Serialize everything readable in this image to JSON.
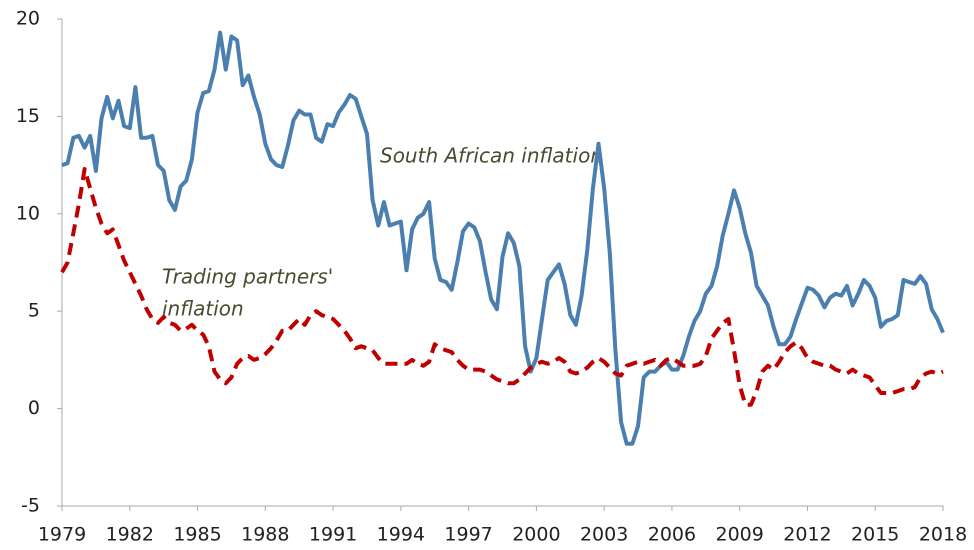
{
  "chart_data": {
    "type": "line",
    "xlim": [
      1979,
      2018
    ],
    "xticks": [
      1979,
      1982,
      1985,
      1988,
      1991,
      1994,
      1997,
      2000,
      2003,
      2006,
      2009,
      2012,
      2015,
      2018
    ],
    "ylim": [
      -5,
      20
    ],
    "yticks": [
      -5,
      0,
      5,
      10,
      15,
      20
    ],
    "grid": false,
    "annotations": [
      "South African inflation",
      "Trading partners'",
      "inflation"
    ],
    "x": [
      1979,
      1979.25,
      1979.5,
      1979.75,
      1980,
      1980.25,
      1980.5,
      1980.75,
      1981,
      1981.25,
      1981.5,
      1981.75,
      1982,
      1982.25,
      1982.5,
      1982.75,
      1983,
      1983.25,
      1983.5,
      1983.75,
      1984,
      1984.25,
      1984.5,
      1984.75,
      1985,
      1985.25,
      1985.5,
      1985.75,
      1986,
      1986.25,
      1986.5,
      1986.75,
      1987,
      1987.25,
      1987.5,
      1987.75,
      1988,
      1988.25,
      1988.5,
      1988.75,
      1989,
      1989.25,
      1989.5,
      1989.75,
      1990,
      1990.25,
      1990.5,
      1990.75,
      1991,
      1991.25,
      1991.5,
      1991.75,
      1992,
      1992.25,
      1992.5,
      1992.75,
      1993,
      1993.25,
      1993.5,
      1993.75,
      1994,
      1994.25,
      1994.5,
      1994.75,
      1995,
      1995.25,
      1995.5,
      1995.75,
      1996,
      1996.25,
      1996.5,
      1996.75,
      1997,
      1997.25,
      1997.5,
      1997.75,
      1998,
      1998.25,
      1998.5,
      1998.75,
      1999,
      1999.25,
      1999.5,
      1999.75,
      2000,
      2000.25,
      2000.5,
      2000.75,
      2001,
      2001.25,
      2001.5,
      2001.75,
      2002,
      2002.25,
      2002.5,
      2002.75,
      2003,
      2003.25,
      2003.5,
      2003.75,
      2004,
      2004.25,
      2004.5,
      2004.75,
      2005,
      2005.25,
      2005.5,
      2005.75,
      2006,
      2006.25,
      2006.5,
      2006.75,
      2007,
      2007.25,
      2007.5,
      2007.75,
      2008,
      2008.25,
      2008.5,
      2008.75,
      2009,
      2009.25,
      2009.5,
      2009.75,
      2010,
      2010.25,
      2010.5,
      2010.75,
      2011,
      2011.25,
      2011.5,
      2011.75,
      2012,
      2012.25,
      2012.5,
      2012.75,
      2013,
      2013.25,
      2013.5,
      2013.75,
      2014,
      2014.25,
      2014.5,
      2014.75,
      2015,
      2015.25,
      2015.5,
      2015.75,
      2016,
      2016.25,
      2016.5,
      2016.75,
      2017,
      2017.25,
      2017.5,
      2017.75,
      2018
    ],
    "series": [
      {
        "color": "#4a7fb0",
        "dash": false,
        "values": [
          12.5,
          12.6,
          13.9,
          14.0,
          13.4,
          14.0,
          12.2,
          14.9,
          16.0,
          14.9,
          15.8,
          14.5,
          14.4,
          16.5,
          13.9,
          13.9,
          14.0,
          12.5,
          12.2,
          10.7,
          10.2,
          11.4,
          11.7,
          12.8,
          15.2,
          16.2,
          16.3,
          17.4,
          19.3,
          17.4,
          19.1,
          18.9,
          16.6,
          17.1,
          16.0,
          15.1,
          13.6,
          12.8,
          12.5,
          12.4,
          13.5,
          14.8,
          15.3,
          15.1,
          15.1,
          13.9,
          13.7,
          14.6,
          14.5,
          15.2,
          15.6,
          16.1,
          15.9,
          15.0,
          14.1,
          10.7,
          9.4,
          10.6,
          9.4,
          9.5,
          9.6,
          7.1,
          9.2,
          9.8,
          10.0,
          10.6,
          7.7,
          6.6,
          6.5,
          6.1,
          7.5,
          9.1,
          9.5,
          9.3,
          8.6,
          7.0,
          5.6,
          5.1,
          7.8,
          9.0,
          8.5,
          7.3,
          3.2,
          1.9,
          2.6,
          4.6,
          6.6,
          7.0,
          7.4,
          6.4,
          4.8,
          4.3,
          5.8,
          8.1,
          11.3,
          13.6,
          11.3,
          8.0,
          3.0,
          -0.7,
          -1.8,
          -1.8,
          -0.9,
          1.6,
          1.9,
          1.9,
          2.2,
          2.4,
          2.0,
          2.0,
          2.7,
          3.7,
          4.5,
          5.0,
          5.9,
          6.3,
          7.3,
          8.9,
          10.0,
          11.2,
          10.3,
          9.0,
          8.0,
          6.3,
          5.8,
          5.3,
          4.2,
          3.3,
          3.3,
          3.7,
          4.6,
          5.4,
          6.2,
          6.1,
          5.8,
          5.2,
          5.7,
          5.9,
          5.8,
          6.3,
          5.3,
          5.9,
          6.6,
          6.3,
          5.7,
          4.2,
          4.5,
          4.6,
          4.8,
          6.6,
          6.5,
          6.4,
          6.8,
          6.4,
          5.1,
          4.6,
          3.9
        ]
      },
      {
        "color": "#c00000",
        "dash": true,
        "values": [
          7.0,
          7.5,
          9.0,
          10.5,
          12.3,
          11.3,
          10.3,
          9.5,
          9.0,
          9.2,
          8.4,
          7.6,
          7.0,
          6.4,
          5.8,
          5.1,
          4.6,
          4.4,
          4.7,
          4.4,
          4.3,
          4.0,
          4.1,
          4.3,
          4.0,
          3.8,
          3.2,
          1.9,
          1.5,
          1.3,
          1.6,
          2.3,
          2.6,
          2.7,
          2.5,
          2.6,
          2.8,
          3.1,
          3.5,
          4.0,
          4.0,
          4.3,
          4.6,
          4.3,
          4.8,
          5.0,
          4.8,
          4.7,
          4.6,
          4.3,
          4.0,
          3.6,
          3.1,
          3.2,
          3.1,
          3.0,
          2.6,
          2.3,
          2.3,
          2.3,
          2.3,
          2.3,
          2.5,
          2.3,
          2.2,
          2.4,
          3.3,
          3.1,
          3.0,
          2.9,
          2.5,
          2.2,
          2.0,
          2.0,
          2.0,
          1.9,
          1.7,
          1.5,
          1.4,
          1.3,
          1.3,
          1.5,
          1.8,
          2.1,
          2.3,
          2.4,
          2.3,
          2.4,
          2.6,
          2.4,
          1.9,
          1.8,
          1.9,
          2.1,
          2.4,
          2.6,
          2.4,
          2.1,
          1.8,
          1.7,
          2.2,
          2.3,
          2.4,
          2.3,
          2.4,
          2.5,
          2.2,
          2.5,
          2.6,
          2.4,
          2.2,
          2.2,
          2.2,
          2.3,
          2.7,
          3.6,
          4.0,
          4.4,
          4.6,
          3.0,
          1.2,
          0.2,
          0.2,
          0.9,
          1.9,
          2.2,
          2.0,
          2.4,
          2.9,
          3.2,
          3.4,
          3.1,
          2.6,
          2.4,
          2.3,
          2.2,
          2.2,
          2.0,
          1.9,
          1.8,
          2.0,
          1.8,
          1.7,
          1.6,
          1.2,
          0.8,
          0.8,
          0.8,
          0.9,
          1.0,
          1.0,
          1.1,
          1.6,
          1.8,
          1.9,
          1.8,
          1.9
        ]
      }
    ]
  }
}
